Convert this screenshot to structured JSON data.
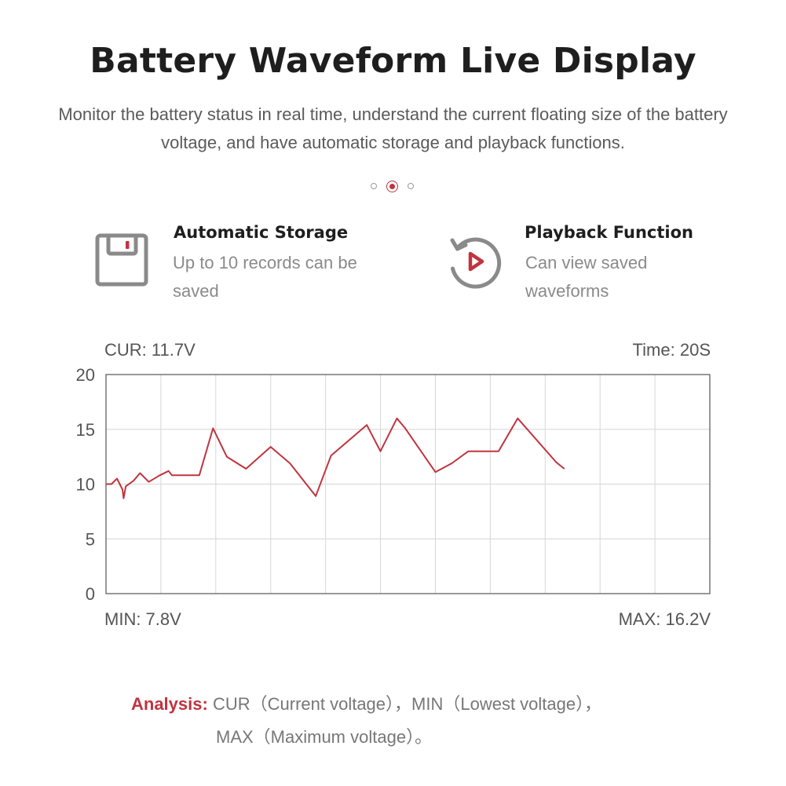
{
  "header": {
    "title": "Battery Waveform Live Display",
    "subtitle": "Monitor the battery status in real time, understand the current floating size of the battery voltage, and have automatic storage and playback functions."
  },
  "pagination": {
    "count": 3,
    "active_index": 1
  },
  "features": [
    {
      "icon": "floppy-disk-icon",
      "heading": "Automatic Storage",
      "description": "Up to 10 records can be saved"
    },
    {
      "icon": "replay-play-icon",
      "heading": "Playback Function",
      "description": "Can view saved waveforms"
    }
  ],
  "chart_data": {
    "type": "line",
    "top_left_label": "CUR: 11.7V",
    "top_right_label": "Time: 20S",
    "bottom_left_label": "MIN: 7.8V",
    "bottom_right_label": "MAX: 16.2V",
    "ylim": [
      0,
      20
    ],
    "yticks": [
      "0",
      "5",
      "10",
      "15",
      "20"
    ],
    "xlim": [
      0,
      11
    ],
    "x_gridlines": 11,
    "grid": true,
    "line_color": "#c0343f",
    "series": [
      {
        "x": [
          0,
          0.1,
          0.2,
          0.3,
          0.32,
          0.36,
          0.5,
          0.62,
          0.78,
          0.98,
          1.14,
          1.2,
          1.32,
          1.7,
          1.95,
          2.2,
          2.55,
          3.0,
          3.35,
          3.82,
          4.1,
          4.75,
          5.0,
          5.3,
          5.45,
          6.0,
          6.3,
          6.6,
          7.15,
          7.5,
          8.2,
          8.35
        ],
        "y": [
          10.0,
          10.0,
          10.5,
          9.5,
          8.7,
          9.8,
          10.3,
          11.0,
          10.2,
          10.8,
          11.2,
          10.8,
          10.8,
          10.8,
          15.1,
          12.5,
          11.4,
          13.4,
          11.9,
          8.9,
          12.6,
          15.4,
          13.0,
          16.0,
          15.1,
          11.1,
          11.9,
          13.0,
          13.0,
          16.0,
          12.0,
          11.4
        ]
      }
    ]
  },
  "analysis": {
    "label": "Analysis:",
    "line1": "CUR（Current voltage），MIN（Lowest voltage），",
    "line2": "MAX（Maximum voltage）。"
  },
  "colors": {
    "accent": "#c0343f",
    "icon_gray": "#8a8a8a",
    "grid": "#d6d6d6"
  }
}
